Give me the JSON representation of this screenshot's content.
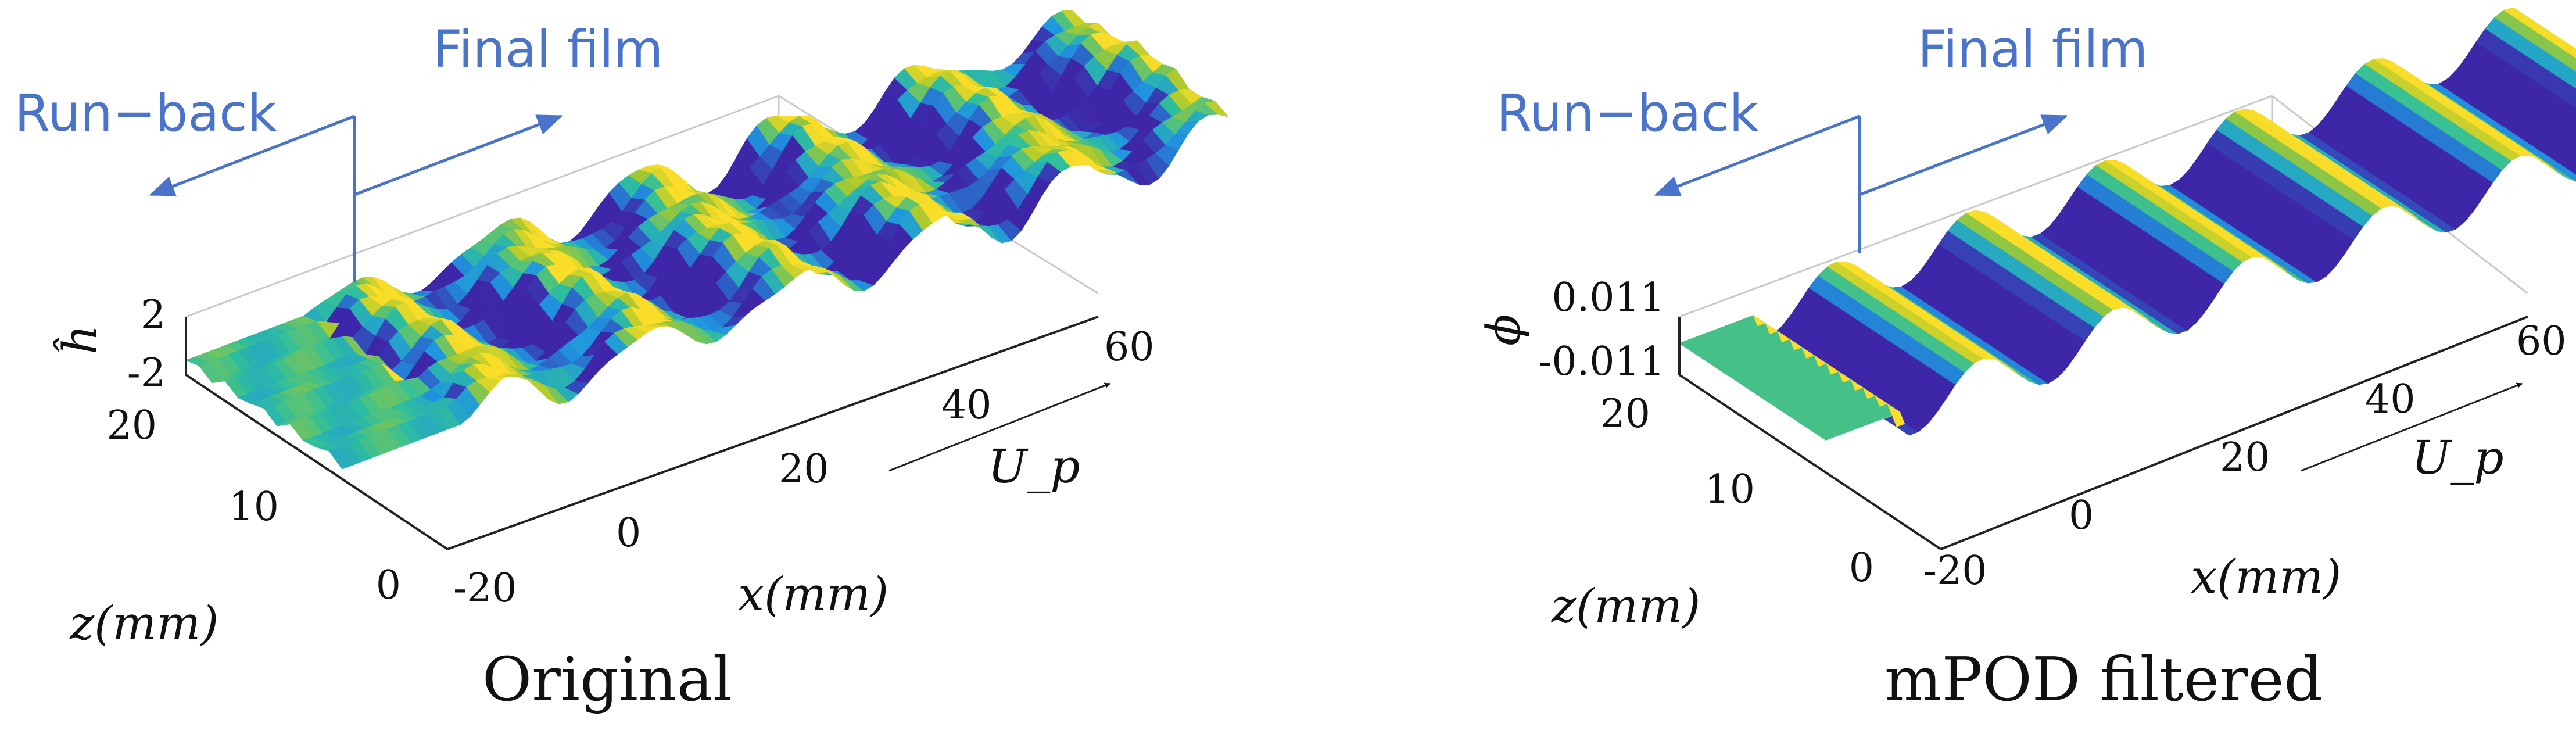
{
  "chart_data": [
    {
      "type": "surface",
      "title": "Original",
      "xlabel": "x(mm)",
      "ylabel": "z(mm)",
      "zlabel": "ĥ",
      "xlim": [
        -20,
        60
      ],
      "ylim": [
        0,
        20
      ],
      "zlim": [
        -2,
        2
      ],
      "x_ticks": [
        "-20",
        "0",
        "20",
        "40",
        "60"
      ],
      "z_ticks": [
        "0",
        "10",
        "20"
      ],
      "h_ticks": [
        "2",
        "-2"
      ],
      "flow_label": "U_p",
      "annotations": [
        "Run−back",
        "Final film"
      ],
      "colormap": [
        "#3e26a8",
        "#1f96e0",
        "#2fbf9c",
        "#a8c82e",
        "#f9dd28"
      ],
      "noise": 1
    },
    {
      "type": "surface",
      "title": "mPOD filtered",
      "xlabel": "x(mm)",
      "ylabel": "z(mm)",
      "zlabel": "ϕ",
      "xlim": [
        -20,
        60
      ],
      "ylim": [
        0,
        20
      ],
      "zlim": [
        -0.011,
        0.011
      ],
      "x_ticks": [
        "-20",
        "0",
        "20",
        "40",
        "60"
      ],
      "z_ticks": [
        "0",
        "10",
        "20"
      ],
      "h_ticks": [
        "0.011",
        "-0.011"
      ],
      "flow_label": "U_p",
      "annotations": [
        "Run−back",
        "Final film"
      ],
      "colormap": [
        "#3e26a8",
        "#1f96e0",
        "#2fbf9c",
        "#a8c82e",
        "#f9dd28"
      ],
      "noise": 0
    }
  ]
}
